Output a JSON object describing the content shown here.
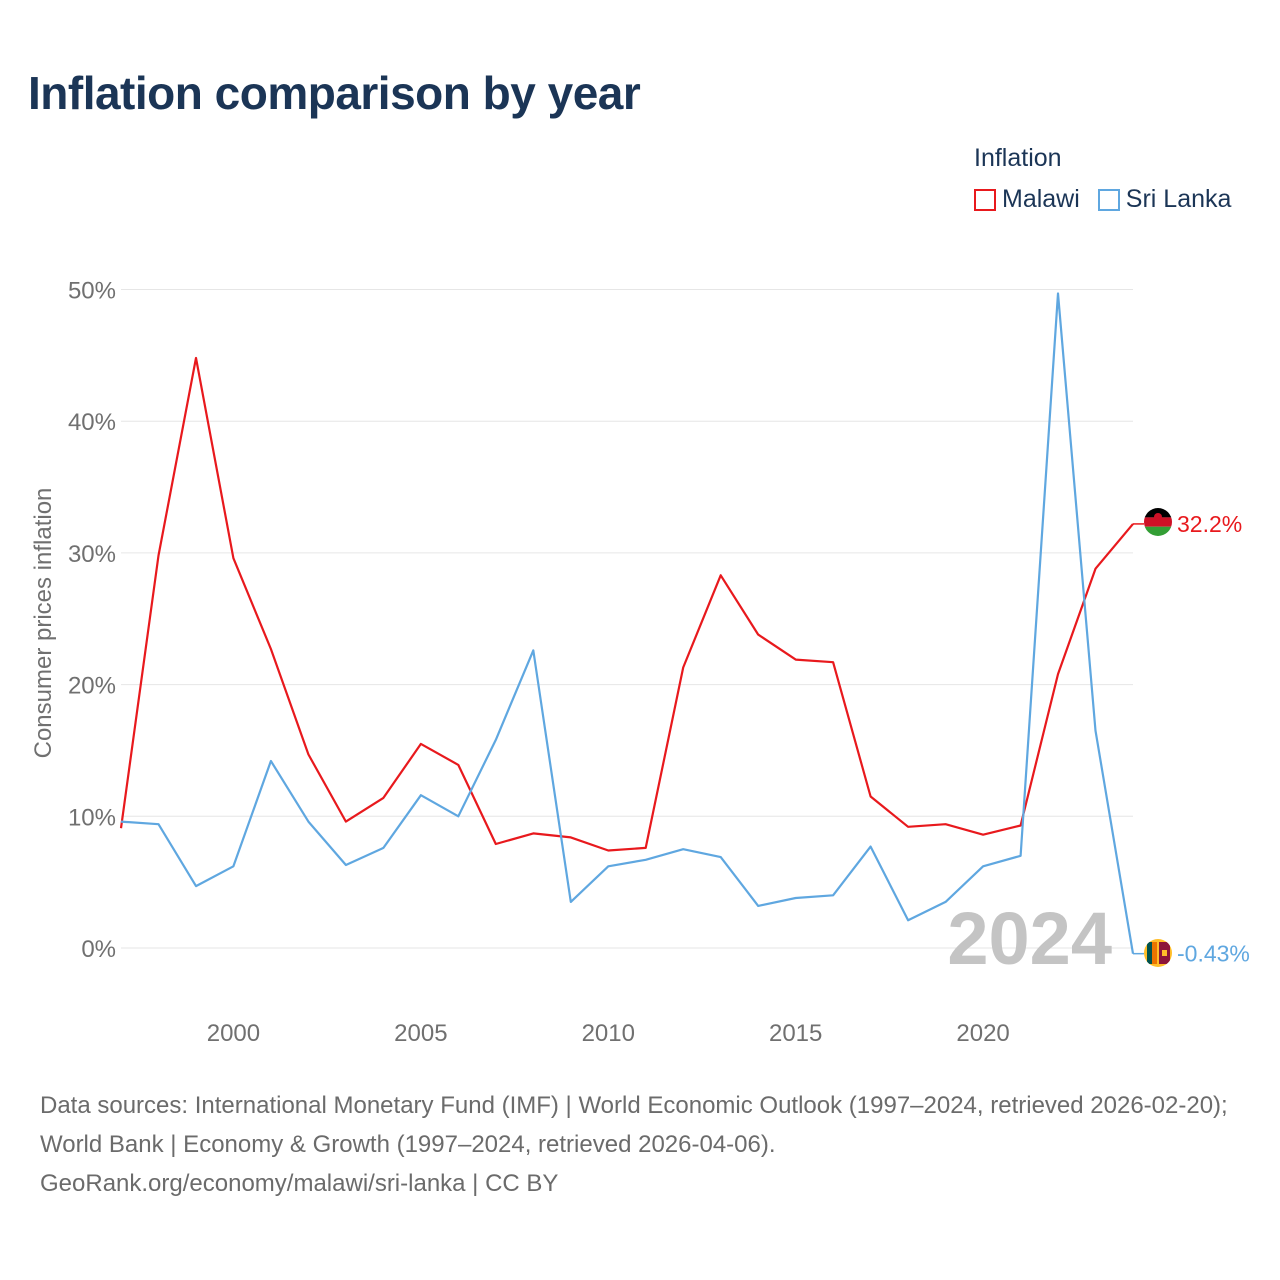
{
  "title": "Inflation comparison by year",
  "legend": {
    "title": "Inflation",
    "items": [
      {
        "label": "Malawi",
        "color": "#e8191d"
      },
      {
        "label": "Sri Lanka",
        "color": "#5fa7e0"
      }
    ]
  },
  "year_watermark": "2024",
  "footer": {
    "sources": "Data sources: International Monetary Fund (IMF) | World Economic Outlook (1997–2024, retrieved 2026-02-20); World Bank | Economy & Growth (1997–2024, retrieved 2026-04-06).",
    "attribution": "GeoRank.org/economy/malawi/sri-lanka | CC BY"
  },
  "chart_data": {
    "type": "line",
    "title": "Inflation comparison by year",
    "xlabel": "",
    "ylabel": "Consumer prices inflation",
    "xlim": [
      1997,
      2024
    ],
    "ylim": [
      -5,
      50
    ],
    "x_ticks": [
      2000,
      2005,
      2010,
      2015,
      2020
    ],
    "y_ticks": [
      0,
      10,
      20,
      30,
      40,
      50
    ],
    "y_tick_labels": [
      "0%",
      "10%",
      "20%",
      "30%",
      "40%",
      "50%"
    ],
    "grid": true,
    "legend_position": "top-right",
    "x": [
      1997,
      1998,
      1999,
      2000,
      2001,
      2002,
      2003,
      2004,
      2005,
      2006,
      2007,
      2008,
      2009,
      2010,
      2011,
      2012,
      2013,
      2014,
      2015,
      2016,
      2017,
      2018,
      2019,
      2020,
      2021,
      2022,
      2023,
      2024
    ],
    "series": [
      {
        "name": "Malawi",
        "color": "#e8191d",
        "values": [
          9.1,
          29.8,
          44.8,
          29.6,
          22.7,
          14.7,
          9.6,
          11.4,
          15.5,
          13.9,
          7.9,
          8.7,
          8.4,
          7.4,
          7.6,
          21.3,
          28.3,
          23.8,
          21.9,
          21.7,
          11.5,
          9.2,
          9.4,
          8.6,
          9.3,
          20.8,
          28.8,
          32.2
        ],
        "end_label": "32.2%"
      },
      {
        "name": "Sri Lanka",
        "color": "#5fa7e0",
        "values": [
          9.6,
          9.4,
          4.7,
          6.2,
          14.2,
          9.6,
          6.3,
          7.6,
          11.6,
          10.0,
          15.8,
          22.6,
          3.5,
          6.2,
          6.7,
          7.5,
          6.9,
          3.2,
          3.8,
          4.0,
          7.7,
          2.1,
          3.5,
          6.2,
          7.0,
          49.7,
          16.5,
          -0.43
        ],
        "end_label": "-0.43%"
      }
    ]
  }
}
